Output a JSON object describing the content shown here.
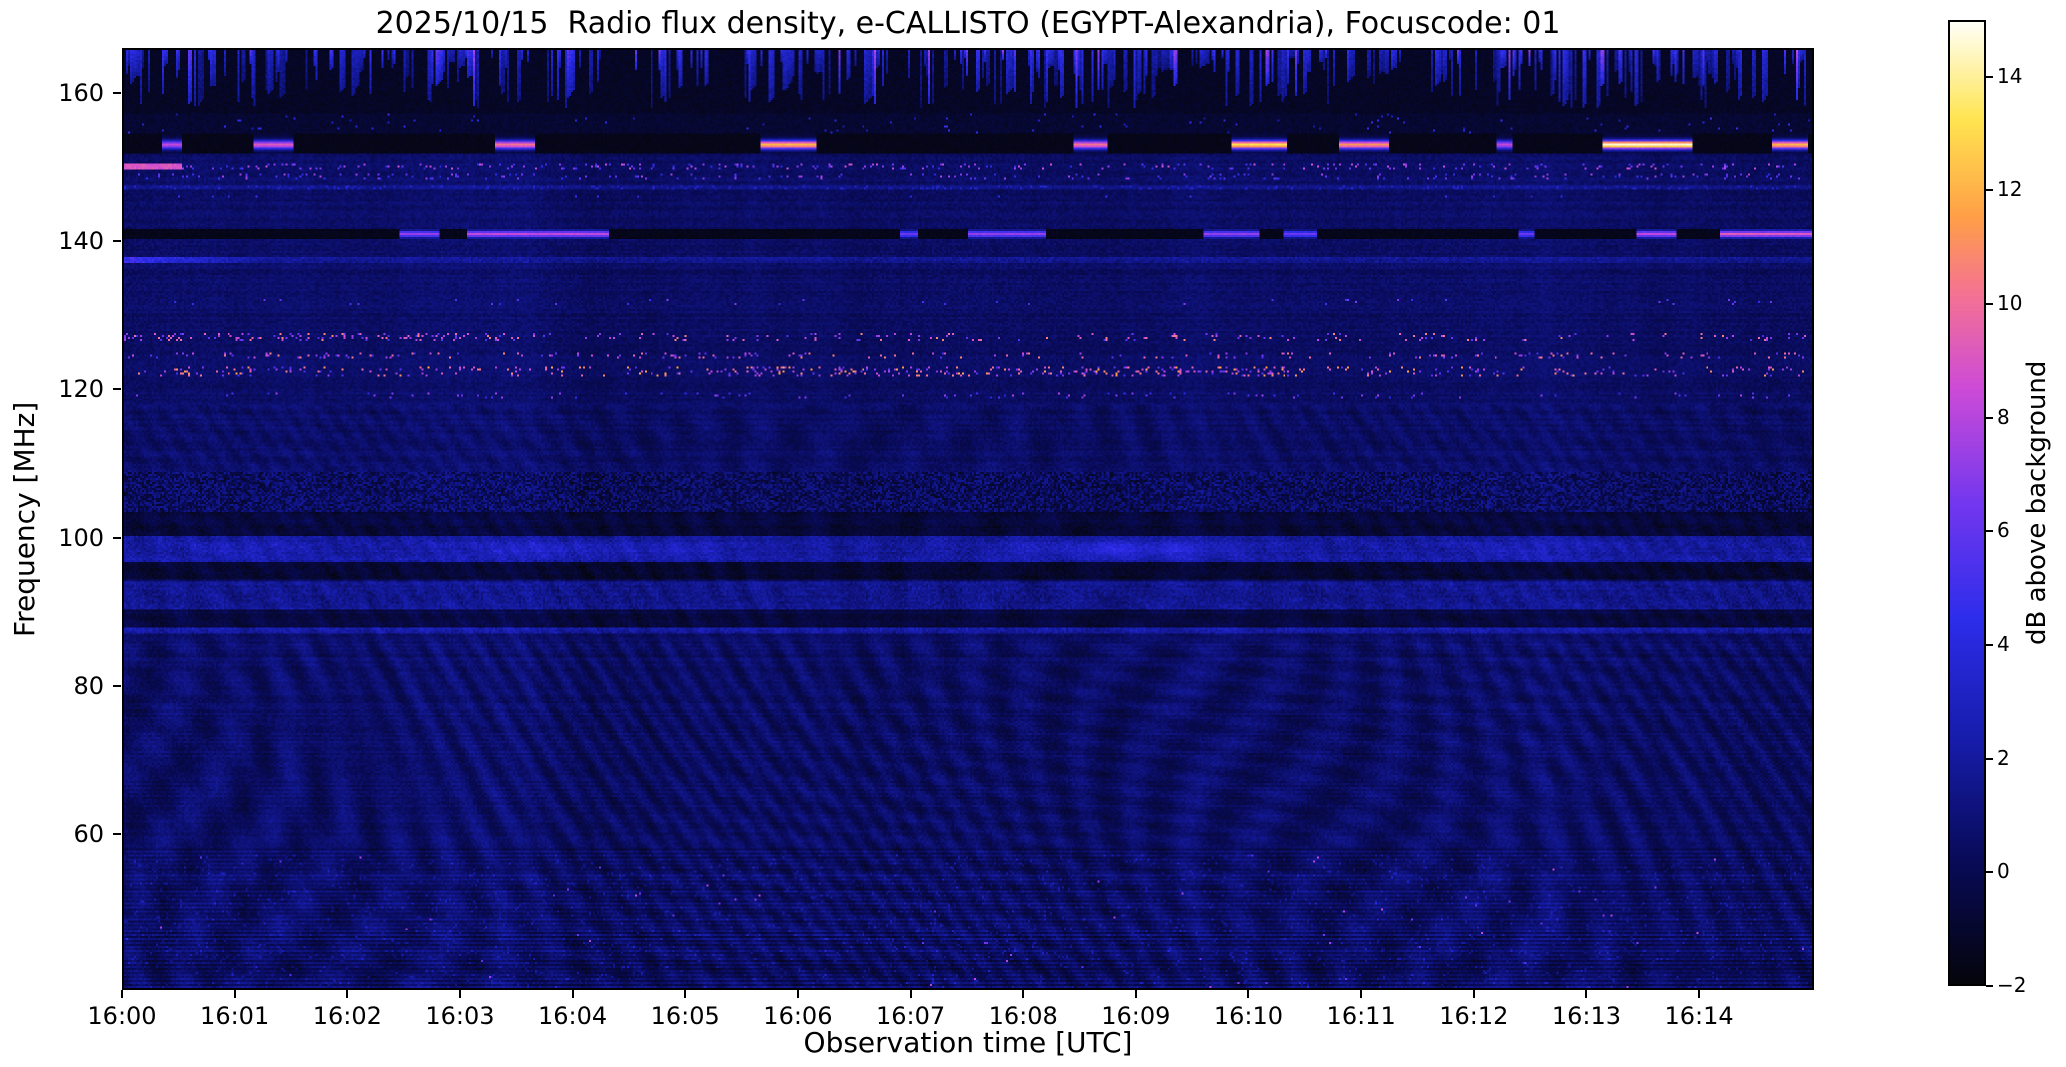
{
  "chart_data": {
    "type": "heatmap",
    "title": "2025/10/15  Radio flux density, e-CALLISTO (EGYPT-Alexandria), Focuscode: 01",
    "xlabel": "Observation time [UTC]",
    "ylabel": "Frequency [MHz]",
    "x_ticks": [
      "16:00",
      "16:01",
      "16:02",
      "16:03",
      "16:04",
      "16:05",
      "16:06",
      "16:07",
      "16:08",
      "16:09",
      "16:10",
      "16:11",
      "16:12",
      "16:13",
      "16:14"
    ],
    "x_minutes_span": 15.02,
    "y_ticks": [
      160,
      140,
      120,
      100,
      80,
      60
    ],
    "freq_min": 39,
    "freq_max": 166,
    "grid": false,
    "colorbar": {
      "label": "dB above background",
      "ticks": [
        14,
        12,
        10,
        8,
        6,
        4,
        2,
        0,
        -2
      ],
      "vmin": -2,
      "vmax": 15
    },
    "colormap": [
      [
        0.0,
        [
          5,
          5,
          12
        ]
      ],
      [
        0.12,
        [
          8,
          10,
          84
        ]
      ],
      [
        0.25,
        [
          22,
          28,
          168
        ]
      ],
      [
        0.38,
        [
          45,
          45,
          235
        ]
      ],
      [
        0.5,
        [
          115,
          55,
          238
        ]
      ],
      [
        0.62,
        [
          205,
          75,
          215
        ]
      ],
      [
        0.72,
        [
          245,
          115,
          145
        ]
      ],
      [
        0.8,
        [
          255,
          160,
          70
        ]
      ],
      [
        0.9,
        [
          255,
          228,
          80
        ]
      ],
      [
        1.0,
        [
          255,
          255,
          244
        ]
      ]
    ],
    "features": {
      "base_db": 0.45,
      "noise_level": 0.9,
      "ripple": {
        "amp_low": 0.5,
        "amp_high": 0.3,
        "split_freq": 86,
        "max_freq": 118
      },
      "top": {
        "black_lo": 151.9,
        "black_hi": 154.6,
        "dark_lo": 154.6,
        "streak_lo": 157.5,
        "streak_p": 0.33
      },
      "rfi_segments_153": [
        [
          0.33,
          0.5,
          8
        ],
        [
          1.15,
          1.5,
          9
        ],
        [
          3.3,
          3.65,
          10
        ],
        [
          5.65,
          6.15,
          12
        ],
        [
          8.45,
          8.75,
          10
        ],
        [
          9.85,
          10.35,
          13
        ],
        [
          10.8,
          11.25,
          11
        ],
        [
          12.2,
          12.35,
          8
        ],
        [
          13.15,
          13.95,
          14.5
        ],
        [
          14.65,
          14.98,
          12
        ]
      ],
      "rfi_segments_141": [
        [
          2.45,
          2.8,
          7
        ],
        [
          3.05,
          4.3,
          8
        ],
        [
          6.9,
          7.05,
          6
        ],
        [
          7.5,
          8.2,
          7
        ],
        [
          9.6,
          10.1,
          7
        ],
        [
          10.3,
          10.6,
          6
        ],
        [
          12.4,
          12.55,
          6
        ],
        [
          13.45,
          13.8,
          8
        ],
        [
          14.2,
          15.02,
          9
        ]
      ],
      "fm_bumps": [
        [
          1.1,
          0.5,
          0.8
        ],
        [
          3.8,
          0.8,
          1.3
        ],
        [
          5.0,
          0.45,
          0.9
        ],
        [
          8.9,
          0.9,
          2.0
        ],
        [
          12.5,
          0.7,
          0.7
        ]
      ],
      "fm_center": 98.4,
      "bands": [
        {
          "lo": 103.5,
          "hi": 108.8,
          "mode": "mottle"
        },
        {
          "lo": 96.6,
          "hi": 100.3,
          "mode": "fm"
        },
        {
          "lo": 94.3,
          "hi": 96.6,
          "mode": "dark",
          "db": -1.3
        },
        {
          "lo": 100.3,
          "hi": 103.5,
          "mode": "dark",
          "db": -1.1
        },
        {
          "lo": 90.2,
          "hi": 93.9,
          "mode": "bright",
          "db": 1.1
        },
        {
          "lo": 87.9,
          "hi": 90.2,
          "mode": "dark",
          "db": -1.0
        },
        {
          "lo": 87.1,
          "hi": 87.9,
          "mode": "bright",
          "db": 1.7
        },
        {
          "lo": 39,
          "hi": 57,
          "mode": "speckle"
        }
      ],
      "lines": [
        {
          "f": 150.2,
          "w": 0.35,
          "mode": "dots",
          "p": 0.1,
          "lo": 4,
          "hi": 9,
          "early": 0.5,
          "earlyDb": 8.5
        },
        {
          "f": 148.9,
          "w": 0.3,
          "mode": "dots",
          "p": 0.07,
          "lo": 4,
          "hi": 8
        },
        {
          "f": 147.4,
          "w": 0.3,
          "mode": "dots",
          "p": 0.12,
          "lo": 2.5,
          "hi": 4,
          "db": 1.0
        },
        {
          "f": 146.2,
          "w": 0.25,
          "mode": "dots",
          "p": 0.03,
          "lo": 3,
          "hi": 5
        },
        {
          "f": 137.6,
          "w": 0.45,
          "mode": "fade",
          "t0": 1.3,
          "a0": 4.5,
          "a1": 1.2
        },
        {
          "f": 131.8,
          "w": 0.4,
          "mode": "dots",
          "p": 0.012,
          "lo": 4,
          "hi": 7
        },
        {
          "f": 127.1,
          "w": 0.6,
          "mode": "dots2",
          "p": 0.16,
          "p2": 0.06,
          "tSplit": 3.5,
          "lo": 5,
          "hi": 11
        },
        {
          "f": 124.6,
          "w": 0.5,
          "mode": "dots",
          "p": 0.08,
          "lo": 5,
          "hi": 11
        },
        {
          "f": 122.4,
          "w": 0.7,
          "mode": "dots3",
          "p": 0.16,
          "p2": 0.08,
          "t1": 5.5,
          "t2": 10.5,
          "lo": 5,
          "hi": 12
        },
        {
          "f": 119.2,
          "w": 0.5,
          "mode": "dots",
          "p": 0.03,
          "lo": 4,
          "hi": 8
        }
      ]
    }
  }
}
